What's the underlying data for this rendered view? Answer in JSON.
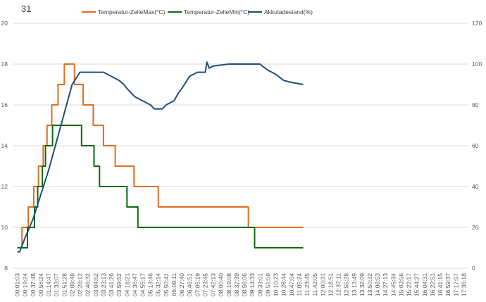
{
  "chart_data": {
    "type": "line",
    "title": "31",
    "x": [
      "00:01:03",
      "00:19:24",
      "00:37:48",
      "00:56:24",
      "01:14:47",
      "01:33:07",
      "01:51:28",
      "02:09:48",
      "02:28:12",
      "02:46:32",
      "03:04:52",
      "03:23:13",
      "03:41:26",
      "03:59:52",
      "04:18:21",
      "04:36:47",
      "04:55:17",
      "05:13:46",
      "05:32:14",
      "05:50:41",
      "06:09:11",
      "06:27:40",
      "06:46:51",
      "07:05:19",
      "07:23:45",
      "07:42:13",
      "08:00:40",
      "08:19:08",
      "08:37:39",
      "08:56:06",
      "09:14:33",
      "09:33:01",
      "09:51:59",
      "10:10:23",
      "10:28:44",
      "10:47:04",
      "11:05:24",
      "11:23:45",
      "11:42:05",
      "12:00:31",
      "12:18:51",
      "12:37:11",
      "12:55:28",
      "13:13:49",
      "13:32:09",
      "13:50:32",
      "14:08:53",
      "14:27:13",
      "14:45:34",
      "15:03:56",
      "15:22:17",
      "15:44:27",
      "16:04:31",
      "16:22:51",
      "16:41:15",
      "16:59:37",
      "17:17:57",
      "17:36:18"
    ],
    "y_left": {
      "min": 8,
      "max": 20,
      "ticks": [
        "8",
        "10",
        "12",
        "14",
        "16",
        "18",
        "20"
      ]
    },
    "y_right": {
      "min": 0,
      "max": 120,
      "ticks": [
        "0",
        "20",
        "40",
        "60",
        "80",
        "100",
        "120"
      ]
    },
    "grid": "horizontal",
    "legend_position": "top",
    "series": [
      {
        "name": "Temperatur-ZelleMax(°C)",
        "axis": "left",
        "color": "#e36c1f",
        "points": [
          [
            0,
            9
          ],
          [
            0.6,
            9
          ],
          [
            0.6,
            10
          ],
          [
            1.4,
            10
          ],
          [
            1.4,
            11
          ],
          [
            2.1,
            11
          ],
          [
            2.1,
            12
          ],
          [
            2.7,
            12
          ],
          [
            2.7,
            13
          ],
          [
            3.3,
            13
          ],
          [
            3.3,
            14
          ],
          [
            3.8,
            14
          ],
          [
            3.8,
            15
          ],
          [
            4.4,
            15
          ],
          [
            4.4,
            16
          ],
          [
            5.2,
            16
          ],
          [
            5.2,
            17
          ],
          [
            6.0,
            17
          ],
          [
            6.0,
            18
          ],
          [
            7.3,
            18
          ],
          [
            7.3,
            17
          ],
          [
            8.4,
            17
          ],
          [
            8.4,
            16
          ],
          [
            9.7,
            16
          ],
          [
            9.7,
            15
          ],
          [
            11.0,
            15
          ],
          [
            11.0,
            14
          ],
          [
            12.5,
            14
          ],
          [
            12.5,
            13
          ],
          [
            14.9,
            13
          ],
          [
            14.9,
            12
          ],
          [
            18.0,
            12
          ],
          [
            18.0,
            11
          ],
          [
            29.5,
            11
          ],
          [
            29.5,
            10
          ],
          [
            36.5,
            10
          ]
        ]
      },
      {
        "name": "Temperatur-ZelleMin(°C)",
        "axis": "left",
        "color": "#0e6b0e",
        "points": [
          [
            0,
            9
          ],
          [
            1.3,
            9
          ],
          [
            1.3,
            10
          ],
          [
            2.2,
            10
          ],
          [
            2.2,
            11
          ],
          [
            2.6,
            11
          ],
          [
            2.6,
            12
          ],
          [
            3.2,
            12
          ],
          [
            3.2,
            13
          ],
          [
            3.6,
            13
          ],
          [
            3.6,
            14
          ],
          [
            4.5,
            14
          ],
          [
            4.5,
            15
          ],
          [
            8.2,
            15
          ],
          [
            8.2,
            14
          ],
          [
            9.8,
            14
          ],
          [
            9.8,
            13
          ],
          [
            10.5,
            13
          ],
          [
            10.5,
            12
          ],
          [
            14.0,
            12
          ],
          [
            14.0,
            11
          ],
          [
            15.4,
            11
          ],
          [
            15.4,
            10
          ],
          [
            30.3,
            10
          ],
          [
            30.3,
            9
          ],
          [
            36.5,
            9
          ]
        ]
      },
      {
        "name": "Akkuladestand(%)",
        "axis": "right",
        "color": "#1f4e79",
        "points": [
          [
            0,
            8
          ],
          [
            0.3,
            8
          ],
          [
            1,
            15
          ],
          [
            2,
            24
          ],
          [
            3,
            36
          ],
          [
            4,
            48
          ],
          [
            5,
            62
          ],
          [
            6,
            76
          ],
          [
            7,
            90
          ],
          [
            8,
            96
          ],
          [
            9,
            96
          ],
          [
            10,
            96
          ],
          [
            11,
            96
          ],
          [
            12,
            94
          ],
          [
            13,
            92
          ],
          [
            13.6,
            90
          ],
          [
            14,
            88
          ],
          [
            15,
            84
          ],
          [
            16,
            82
          ],
          [
            17,
            80
          ],
          [
            17.5,
            78
          ],
          [
            18,
            78
          ],
          [
            18.5,
            78
          ],
          [
            19,
            80
          ],
          [
            20,
            82
          ],
          [
            20.6,
            86
          ],
          [
            21,
            88
          ],
          [
            22,
            94
          ],
          [
            23,
            96
          ],
          [
            24,
            96
          ],
          [
            24.2,
            101
          ],
          [
            24.5,
            98
          ],
          [
            25,
            99
          ],
          [
            27,
            100
          ],
          [
            28,
            100
          ],
          [
            29,
            100
          ],
          [
            30,
            100
          ],
          [
            31,
            100
          ],
          [
            31.3,
            99
          ],
          [
            32,
            97
          ],
          [
            33,
            95
          ],
          [
            34,
            92
          ],
          [
            35,
            91
          ],
          [
            36.5,
            90
          ]
        ]
      }
    ]
  }
}
